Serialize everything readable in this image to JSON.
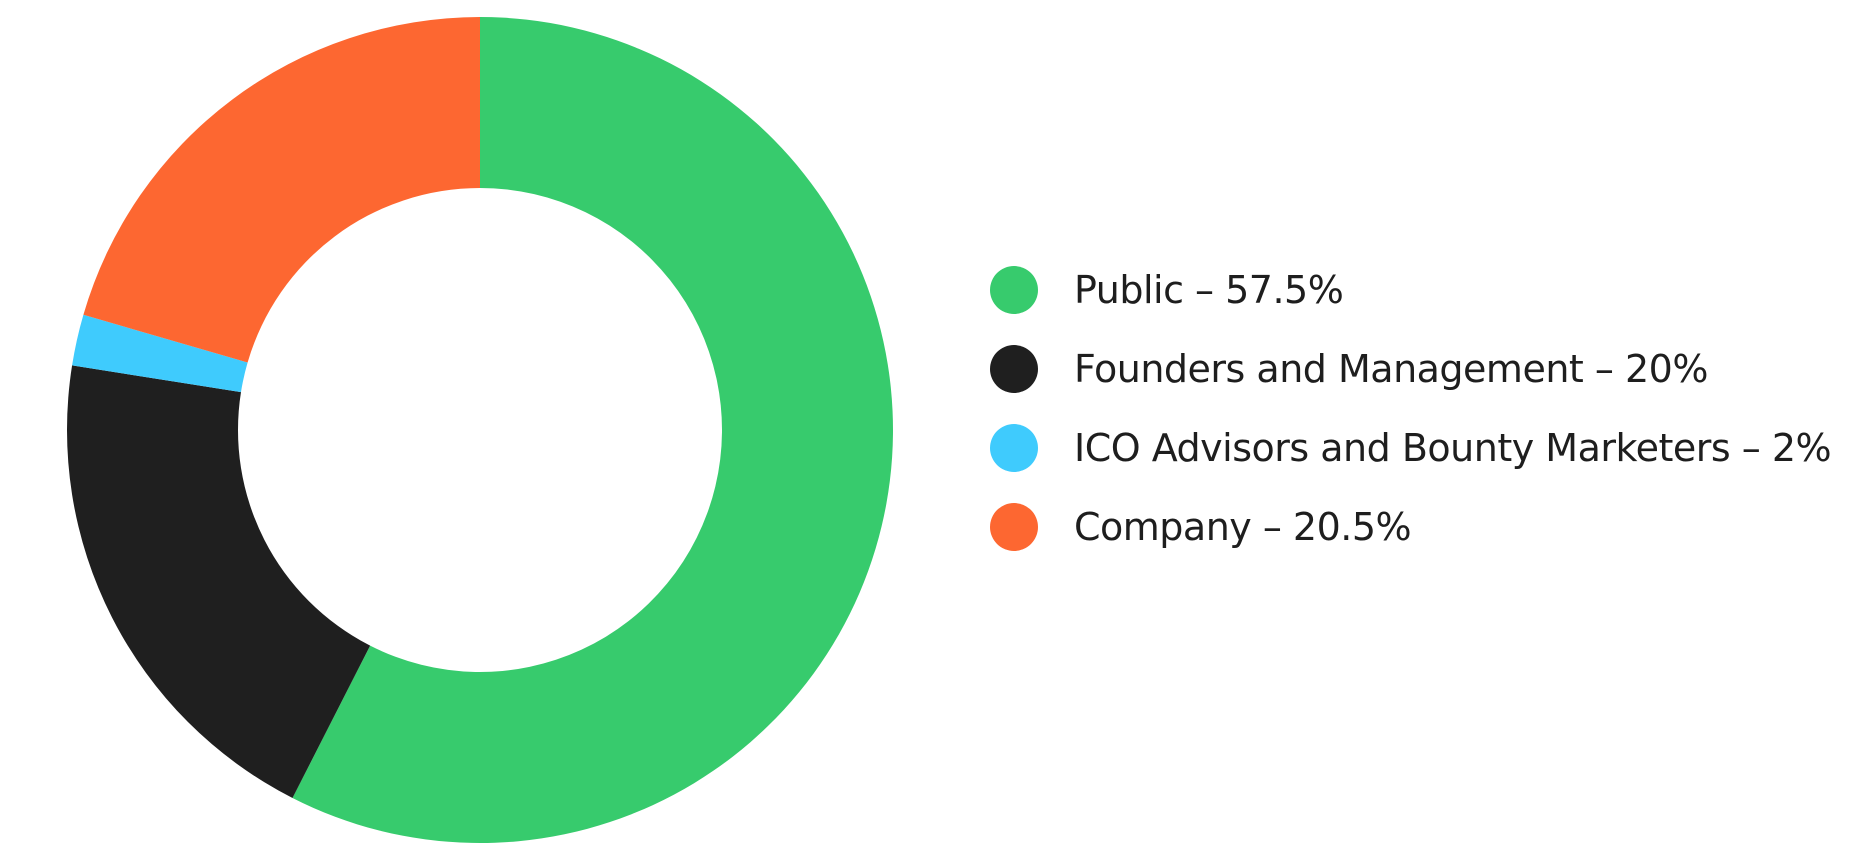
{
  "chart_data": {
    "type": "pie",
    "variant": "donut",
    "categories": [
      "Public",
      "Founders and Management",
      "ICO Advisors and Bounty Marketers",
      "Company"
    ],
    "values": [
      57.5,
      20,
      2,
      20.5
    ],
    "unit": "%",
    "colors": [
      "#37cb6d",
      "#1f1f1f",
      "#3fcbfd",
      "#fd6731"
    ],
    "legend_labels": [
      "Public – 57.5%",
      "Founders and Management – 20%",
      "ICO Advisors and Bounty Marketers – 2%",
      "Company – 20.5%"
    ],
    "legend_position": "right",
    "start_angle": "top",
    "direction": "clockwise"
  }
}
